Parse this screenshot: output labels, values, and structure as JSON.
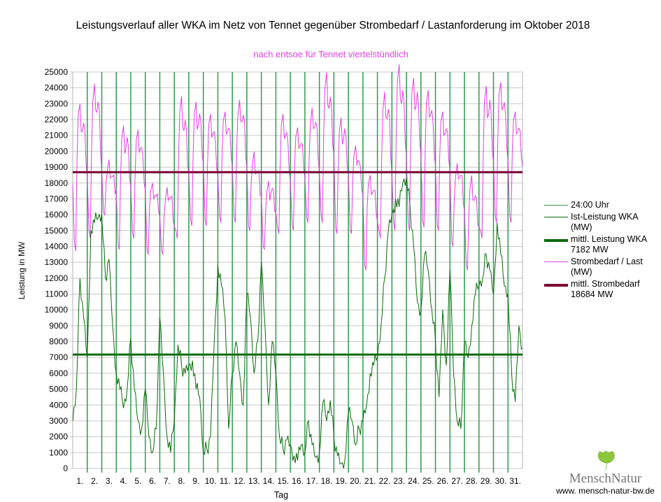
{
  "chart_data": {
    "type": "line",
    "title": "Leistungsverlauf aller WKA im Netz von Tennet gegenüber  Strombedarf / Lastanforderung im Oktober 2018",
    "subtitle": "nach entsoe für Tennet viertelstündlich",
    "xlabel": "Tag",
    "ylabel": "Leistung in MW",
    "ylim": [
      0,
      25000
    ],
    "ytick_step": 1000,
    "xlim_days": [
      0,
      31
    ],
    "grid": true,
    "legend_position": "right",
    "x_tick_labels": [
      "1.",
      "2.",
      "3.",
      "4.",
      "5.",
      "6.",
      "7.",
      "8.",
      "9.",
      "10.",
      "11.",
      "12.",
      "13.",
      "14.",
      "15.",
      "16.",
      "17.",
      "18.",
      "19.",
      "20.",
      "21.",
      "22.",
      "23.",
      "24.",
      "25.",
      "26.",
      "27.",
      "28.",
      "29.",
      "30.",
      "31."
    ],
    "series": [
      {
        "name": "24:00 Uhr",
        "legend": [
          "24:00 Uhr"
        ],
        "color": "#2e9a4e",
        "type": "vertical-day-lines"
      },
      {
        "name": "Ist-Leistung WKA (MW)",
        "legend": [
          "Ist-Leistung WKA",
          "(MW)"
        ],
        "color": "#0a6a0a",
        "sample_interval_hours": 6,
        "values": [
          3000,
          5000,
          12000,
          9500,
          7000,
          15000,
          15500,
          15800,
          16000,
          12000,
          13200,
          9000,
          6000,
          5000,
          3800,
          5000,
          8200,
          5000,
          3000,
          2500,
          5000,
          2000,
          1000,
          2500,
          9500,
          6000,
          2000,
          1000,
          3000,
          7800,
          6500,
          6000,
          6500,
          6800,
          5000,
          4500,
          1000,
          1200,
          2000,
          8000,
          12800,
          11500,
          9500,
          2500,
          6000,
          8000,
          6000,
          4000,
          11000,
          9500,
          6000,
          8000,
          13000,
          9000,
          4000,
          8000,
          6000,
          2000,
          1200,
          1800,
          1500,
          800,
          500,
          1500,
          1000,
          3000,
          1500,
          700,
          1000,
          4200,
          3000,
          4300,
          2000,
          800,
          300,
          500,
          3500,
          3000,
          1500,
          2500,
          3000,
          4000,
          6000,
          6500,
          7000,
          9000,
          12000,
          15000,
          16000,
          17000,
          16500,
          18000,
          18300,
          16500,
          14000,
          10500,
          10000,
          13500,
          12500,
          10000,
          8000,
          4500,
          10000,
          6500,
          12500,
          6000,
          3000,
          2500,
          8000,
          7000,
          9000,
          11000,
          11500,
          12000,
          13500,
          12500,
          11000,
          15500,
          13500,
          11500,
          11000,
          6000,
          4200,
          9000,
          7600
        ]
      },
      {
        "name": "mittl. Leistung WKA",
        "legend": [
          "mittl. Leistung WKA",
          "7182 MW"
        ],
        "color": "#0b6b0b",
        "value": 7182
      },
      {
        "name": "Strombedarf / Last (MW)",
        "legend": [
          "Strombedarf / Last",
          "(MW)"
        ],
        "color": "#e040e0",
        "daily_min": [
          13700,
          14500,
          16000,
          13800,
          14500,
          13500,
          13500,
          14500,
          15300,
          15300,
          15500,
          15500,
          15000,
          13800,
          14800,
          15000,
          15500,
          15500,
          14800,
          14800,
          12500,
          14500,
          15000,
          15000,
          15200,
          15000,
          14000,
          12500,
          14500,
          15500,
          15500
        ],
        "daily_peak": [
          23000,
          24000,
          19000,
          21500,
          21000,
          18000,
          17500,
          23000,
          23000,
          22000,
          22500,
          23000,
          19500,
          18000,
          22000,
          21500,
          22500,
          24500,
          22000,
          20000,
          18500,
          23500,
          25000,
          24500,
          23500,
          22500,
          19000,
          18000,
          24000,
          24000,
          22500
        ]
      },
      {
        "name": "mittl. Strombedarf",
        "legend": [
          "mittl. Strombedarf",
          "18684 MW"
        ],
        "color": "#7a0032",
        "value": 18684
      }
    ]
  },
  "logo": {
    "brand": "MenschNatur",
    "url": "www. mensch-natur-bw.de"
  }
}
